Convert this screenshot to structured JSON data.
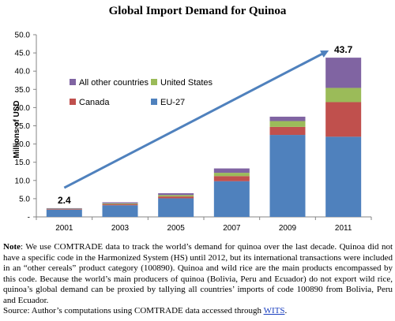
{
  "chart_data": {
    "type": "bar",
    "stacked": true,
    "title": "Global Import Demand for Quinoa",
    "ylabel": "Millions of USD",
    "xlabel": "",
    "ylim": [
      0,
      50
    ],
    "y_ticks": [
      "-",
      "5.0",
      "10.0",
      "15.0",
      "20.0",
      "25.0",
      "30.0",
      "35.0",
      "40.0",
      "45.0",
      "50.0"
    ],
    "categories": [
      "2001",
      "2003",
      "2005",
      "2007",
      "2009",
      "2011"
    ],
    "series": [
      {
        "name": "EU-27",
        "color": "#4f81bd",
        "values": [
          2.0,
          3.2,
          5.1,
          9.8,
          22.5,
          22.0
        ]
      },
      {
        "name": "Canada",
        "color": "#c0504d",
        "values": [
          0.15,
          0.3,
          0.5,
          1.4,
          2.2,
          9.5
        ]
      },
      {
        "name": "United States",
        "color": "#9bbb59",
        "values": [
          0.1,
          0.2,
          0.4,
          0.9,
          1.6,
          3.9
        ]
      },
      {
        "name": "All other countries",
        "color": "#8064a2",
        "values": [
          0.15,
          0.3,
          0.5,
          1.2,
          1.2,
          8.3
        ]
      }
    ],
    "data_labels": [
      {
        "category": "2001",
        "text": "2.4"
      },
      {
        "category": "2011",
        "text": "43.7"
      }
    ],
    "trend_arrow": {
      "from": {
        "category": "2001",
        "y": 8.0
      },
      "to": {
        "category": "2011",
        "y": 45.5
      },
      "color": "#4f81bd"
    },
    "legend_placement": "top-left",
    "grid": false
  },
  "note": {
    "label": "Note",
    "text": ": We use COMTRADE data to track the world’s demand for quinoa over the last decade. Quinoa did not have a specific code in the Harmonized System (HS) until 2012, but its international transactions were included in an “other cereals” product category (100890). Quinoa and wild rice are the main products encompassed by this code. Because the world’s main producers of quinoa (Bolivia, Peru and Ecuador) do not export wild rice, quinoa’s global demand can be proxied by tallying all countries’ imports of code 100890 from Bolivia, Peru and Ecuador."
  },
  "source": {
    "text": "Source: Author’s computations using COMTRADE data accessed through ",
    "link": "WITS",
    "suffix": "."
  }
}
